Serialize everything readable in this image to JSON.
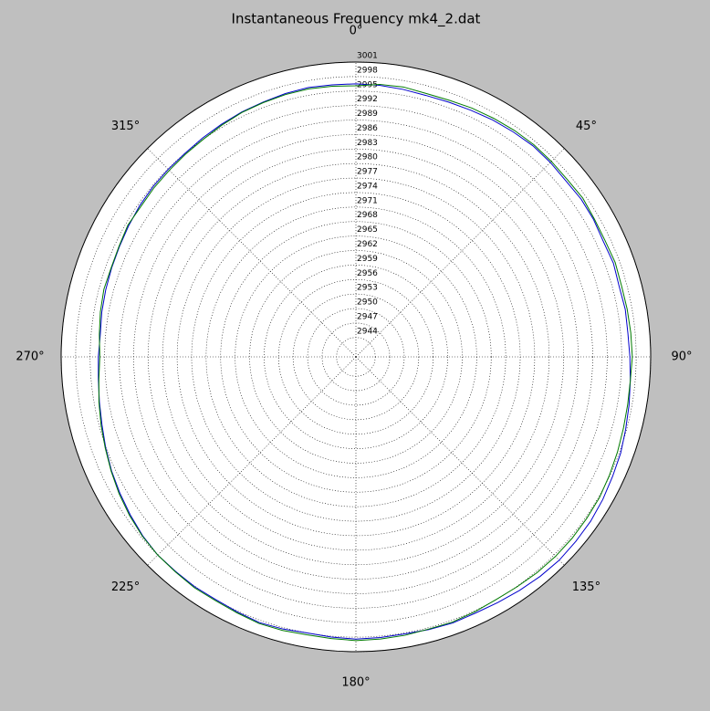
{
  "chart_data": {
    "type": "polar-line",
    "title": "Instantaneous Frequency  mk4_2.dat",
    "theta_direction": "clockwise",
    "theta_zero": "top",
    "x": [
      0,
      5,
      10,
      15,
      20,
      25,
      30,
      35,
      40,
      45,
      50,
      55,
      60,
      65,
      70,
      75,
      80,
      85,
      90,
      95,
      100,
      105,
      110,
      115,
      120,
      125,
      130,
      135,
      140,
      145,
      150,
      155,
      160,
      165,
      170,
      175,
      180,
      185,
      190,
      195,
      200,
      205,
      210,
      215,
      220,
      225,
      230,
      235,
      240,
      245,
      250,
      255,
      260,
      265,
      270,
      275,
      280,
      285,
      290,
      295,
      300,
      305,
      310,
      315,
      320,
      325,
      330,
      335,
      340,
      345,
      350,
      355
    ],
    "series": [
      {
        "color": "#0000cc",
        "values": [
          2996.5,
          2996.4,
          2996.2,
          2996.0,
          2996.1,
          2996.3,
          2996.6,
          2996.8,
          2997.0,
          2996.9,
          2996.7,
          2996.9,
          2996.8,
          2996.5,
          2996.7,
          2996.4,
          2996.6,
          2996.5,
          2996.7,
          2997.0,
          2997.4,
          2997.8,
          2998.3,
          2998.6,
          2999.0,
          2999.3,
          2999.4,
          2999.5,
          2999.3,
          2999.0,
          2998.7,
          2998.5,
          2998.6,
          2998.4,
          2998.2,
          2998.3,
          2998.4,
          2998.2,
          2998.0,
          2998.3,
          2998.5,
          2998.2,
          2998.0,
          2998.1,
          2998.0,
          2998.0,
          2997.6,
          2997.0,
          2996.4,
          2995.8,
          2995.1,
          2994.4,
          2993.9,
          2993.5,
          2993.3,
          2993.1,
          2993.4,
          2993.6,
          2993.8,
          2994.0,
          2994.3,
          2994.6,
          2994.8,
          2994.9,
          2995.0,
          2995.3,
          2995.6,
          2995.9,
          2996.1,
          2996.4,
          2996.6,
          2996.5
        ]
      },
      {
        "color": "#007a00",
        "values": [
          2996.1,
          2996.6,
          2996.7,
          2996.4,
          2996.5,
          2996.8,
          2997.0,
          2997.2,
          2997.3,
          2997.2,
          2997.1,
          2997.3,
          2997.0,
          2996.9,
          2997.1,
          2996.9,
          2997.0,
          2997.1,
          2997.2,
          2997.0,
          2997.1,
          2997.3,
          2997.6,
          2997.9,
          2998.2,
          2998.3,
          2998.4,
          2998.4,
          2998.3,
          2998.1,
          2998.0,
          2998.2,
          2998.4,
          2998.3,
          2998.5,
          2998.6,
          2998.7,
          2998.5,
          2998.4,
          2998.6,
          2998.7,
          2998.4,
          2998.2,
          2998.3,
          2998.1,
          2998.0,
          2997.7,
          2997.2,
          2996.6,
          2995.9,
          2995.2,
          2994.6,
          2994.0,
          2993.4,
          2993.0,
          2993.3,
          2993.7,
          2994.0,
          2993.9,
          2994.1,
          2994.5,
          2994.3,
          2994.5,
          2994.6,
          2994.8,
          2995.0,
          2995.4,
          2995.8,
          2996.0,
          2996.2,
          2996.3,
          2996.2
        ]
      }
    ],
    "rlim": [
      2940,
      3001
    ],
    "rticks": [
      2944,
      2947,
      2950,
      2953,
      2956,
      2959,
      2962,
      2965,
      2968,
      2971,
      2974,
      2977,
      2980,
      2983,
      2986,
      2989,
      2992,
      2995,
      2998,
      3001
    ],
    "thetaticks": [
      {
        "value": 0,
        "label": "0°"
      },
      {
        "value": 45,
        "label": "45°"
      },
      {
        "value": 90,
        "label": "90°"
      },
      {
        "value": 135,
        "label": "135°"
      },
      {
        "value": 180,
        "label": "180°"
      },
      {
        "value": 225,
        "label": "225°"
      },
      {
        "value": 270,
        "label": "270°"
      },
      {
        "value": 315,
        "label": "315°"
      }
    ],
    "grid": true
  }
}
